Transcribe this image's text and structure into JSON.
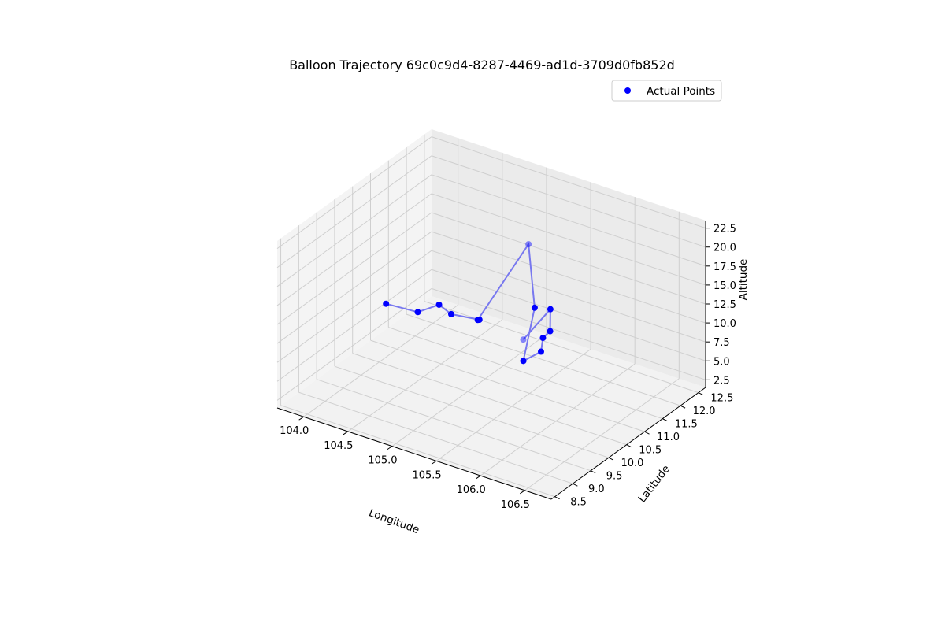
{
  "chart_data": {
    "type": "scatter3d",
    "title": "Balloon Trajectory 69c0c9d4-8287-4469-ad1d-3709d0fb852d",
    "xlabel": "Longitude",
    "ylabel": "Latitude",
    "zlabel": "Altitude",
    "xlim": [
      103.7,
      106.8
    ],
    "ylim": [
      8.4,
      12.7
    ],
    "zlim": [
      1.5,
      23.5
    ],
    "x_ticks": [
      "104.0",
      "104.5",
      "105.0",
      "105.5",
      "106.0",
      "106.5"
    ],
    "y_ticks": [
      "8.5",
      "9.0",
      "9.5",
      "10.0",
      "10.5",
      "11.0",
      "11.5",
      "12.0",
      "12.5"
    ],
    "z_ticks": [
      "2.5",
      "5.0",
      "7.5",
      "10.0",
      "12.5",
      "15.0",
      "17.5",
      "20.0",
      "22.5"
    ],
    "grid": true,
    "legend": {
      "position": "top-right",
      "entries": [
        "Actual Points"
      ]
    },
    "series": [
      {
        "name": "Actual Points",
        "color": "#0000ff",
        "line_color": "#6b6bf0",
        "points": [
          {
            "x": 104.9,
            "y": 12.3,
            "z": 1.8
          },
          {
            "x": 106.1,
            "y": 10.1,
            "z": 18.0
          },
          {
            "x": 106.3,
            "y": 9.6,
            "z": 17.6
          },
          {
            "x": 106.3,
            "y": 9.4,
            "z": 17.4
          },
          {
            "x": 106.4,
            "y": 9.1,
            "z": 17.0
          },
          {
            "x": 106.2,
            "y": 9.1,
            "z": 15.0
          },
          {
            "x": 105.8,
            "y": 10.4,
            "z": 16.0
          },
          {
            "x": 105.0,
            "y": 12.2,
            "z": 15.1
          },
          {
            "x": 105.4,
            "y": 9.8,
            "z": 14.9
          },
          {
            "x": 105.5,
            "y": 9.6,
            "z": 16.0
          },
          {
            "x": 105.1,
            "y": 9.8,
            "z": 14.5
          },
          {
            "x": 104.8,
            "y": 10.2,
            "z": 13.2
          },
          {
            "x": 104.6,
            "y": 10.1,
            "z": 11.8
          },
          {
            "x": 104.2,
            "y": 10.2,
            "z": 11.0
          }
        ]
      }
    ]
  }
}
